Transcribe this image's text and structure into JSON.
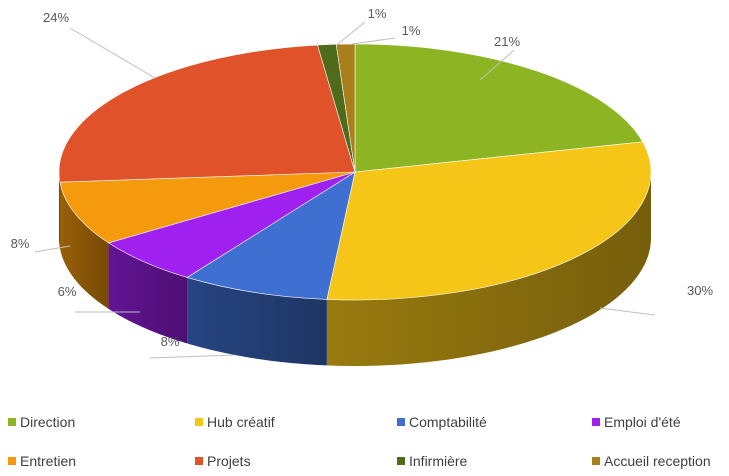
{
  "chart_data": {
    "type": "pie",
    "title": "",
    "legend_position": "bottom",
    "slices": [
      {
        "label": "Direction",
        "value": 21,
        "display": "21%",
        "color": "#8db523"
      },
      {
        "label": "Hub créatif",
        "value": 30,
        "display": "30%",
        "color": "#f5c518"
      },
      {
        "label": "Comptabilité",
        "value": 8,
        "display": "8%",
        "color": "#3f6fd1"
      },
      {
        "label": "Emploi d'été",
        "value": 6,
        "display": "6%",
        "color": "#a020f0"
      },
      {
        "label": "Entretien",
        "value": 8,
        "display": "8%",
        "color": "#f59a0c"
      },
      {
        "label": "Projets",
        "value": 24,
        "display": "24%",
        "color": "#e0522a"
      },
      {
        "label": "Infirmière",
        "value": 1,
        "display": "1%",
        "color": "#4e6b1c"
      },
      {
        "label": "Accueil reception",
        "value": 1,
        "display": "1%",
        "color": "#a87f1a"
      }
    ]
  }
}
